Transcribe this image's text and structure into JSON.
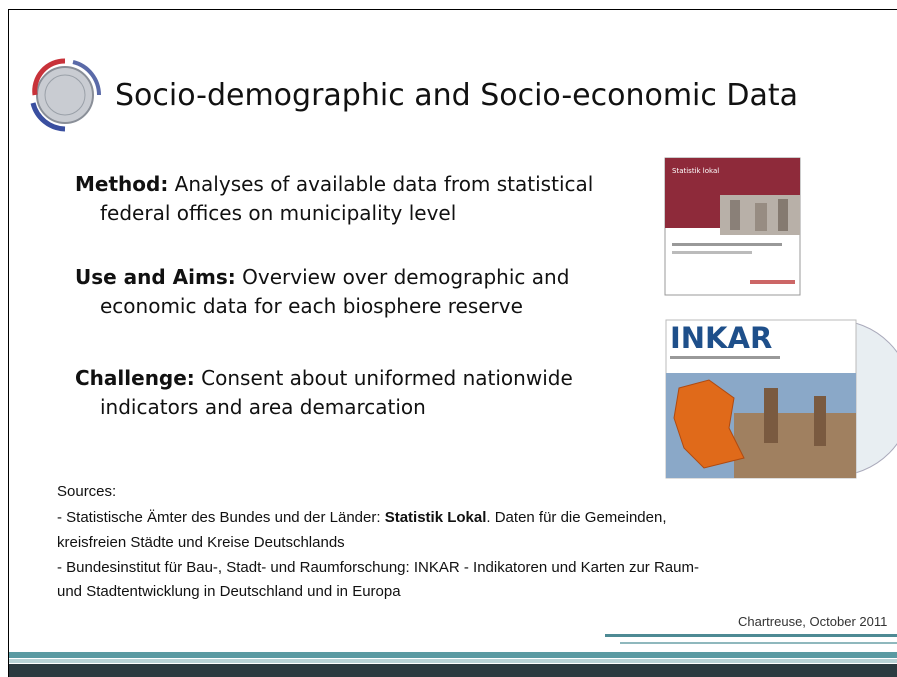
{
  "title": "Socio-demographic and Socio-economic Data",
  "bullets": [
    {
      "label": "Method:",
      "text": " Analyses of available data from statistical",
      "text2": "federal offices on municipality level"
    },
    {
      "label": "Use and Aims:",
      "text": " Overview over demographic and",
      "text2": "economic data for each biosphere reserve"
    },
    {
      "label": "Challenge:",
      "text": " Consent about uniformed nationwide",
      "text2": "indicators and area demarcation"
    }
  ],
  "images": {
    "statistik_cover": "Statistik lokal",
    "inkar_cover": "INKAR"
  },
  "sources": {
    "heading": "Sources:",
    "lines": [
      {
        "prefix": "- Statistische Ämter des Bundes und der Länder: ",
        "bold": "Statistik Lokal",
        "suffix": ". Daten für die Gemeinden,"
      },
      {
        "prefix": "kreisfreien Städte und Kreise Deutschlands"
      },
      {
        "prefix": "- Bundesinstitut für Bau-, Stadt- und Raumforschung: INKAR - Indikatoren und Karten zur Raum-"
      },
      {
        "prefix": "und Stadtentwicklung in Deutschland und in Europa"
      }
    ]
  },
  "footer": "Chartreuse, October 2011"
}
